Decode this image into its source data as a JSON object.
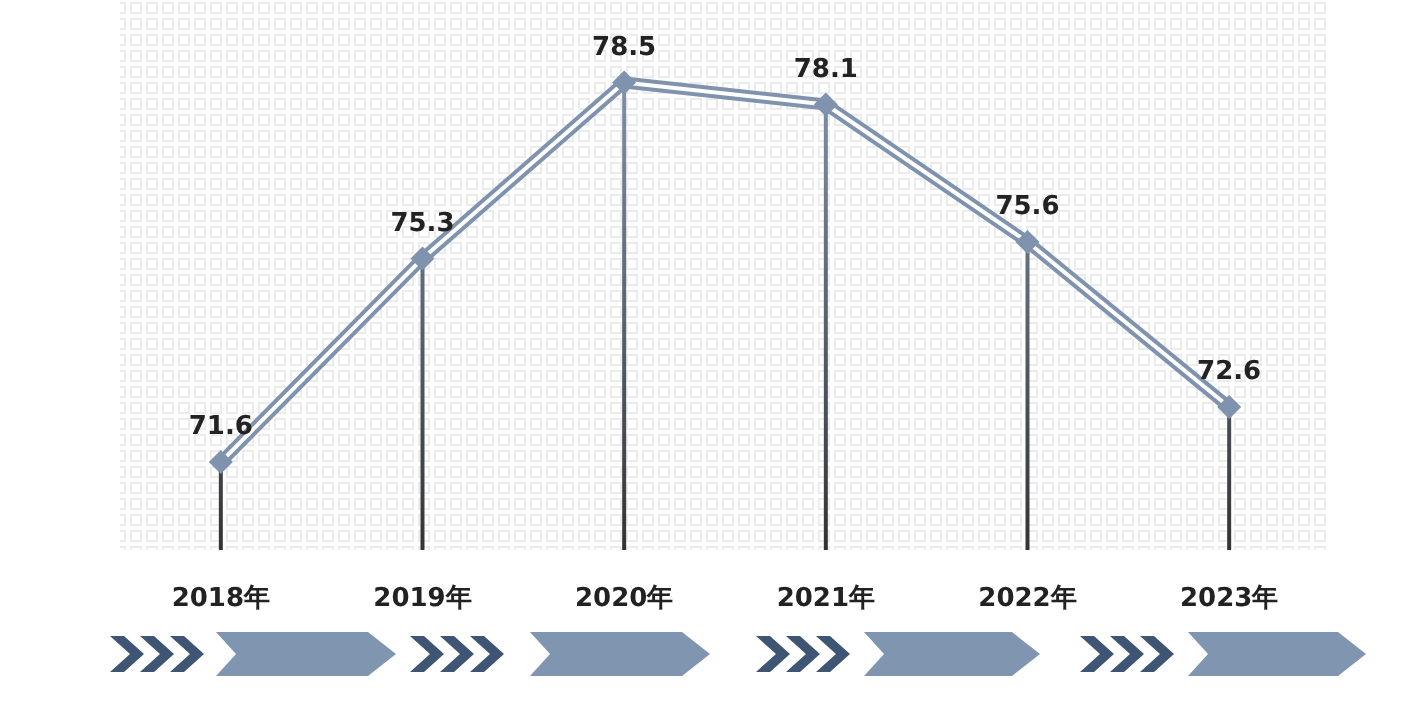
{
  "chart_data": {
    "type": "line",
    "categories": [
      "2018年",
      "2019年",
      "2020年",
      "2021年",
      "2022年",
      "2023年"
    ],
    "series": [
      {
        "color": "#7f93ae",
        "values": [
          71.6,
          75.3,
          78.5,
          78.1,
          75.6,
          72.6
        ]
      }
    ],
    "ylim": [
      70,
      80
    ],
    "tick_labels": "x",
    "data_labels": true,
    "marker": "diamond"
  }
}
